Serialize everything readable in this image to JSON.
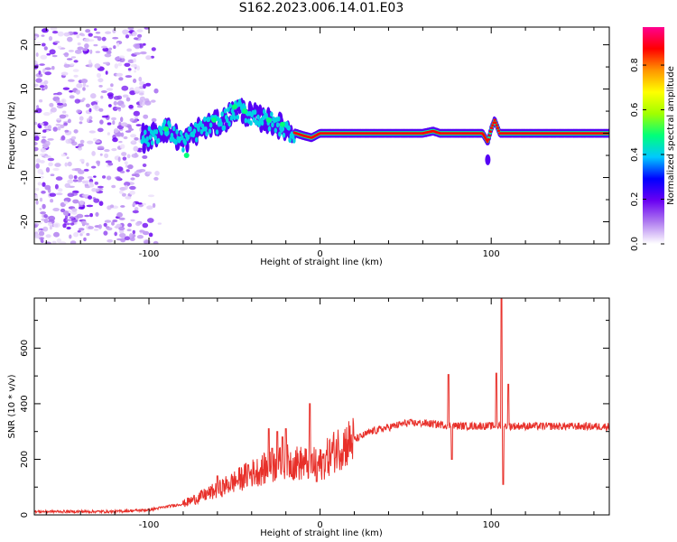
{
  "title": "S162.2023.006.14.01.E03",
  "chart_data": [
    {
      "type": "heatmap",
      "xlabel": "Height of straight line (km)",
      "ylabel": "Frequency (Hz)",
      "xlim": [
        -167,
        169
      ],
      "ylim": [
        -25,
        24
      ],
      "xticks": [
        -100,
        0,
        100
      ],
      "yticks": [
        -20,
        -10,
        0,
        10,
        20
      ],
      "colorbar": {
        "label": "Normalized spectral amplitude",
        "ticks": [
          0.0,
          0.2,
          0.4,
          0.6,
          0.8
        ],
        "range": [
          0,
          0.97
        ],
        "colors": [
          "#ffffff",
          "#b07df0",
          "#6a00f2",
          "#0000ff",
          "#00c8ff",
          "#00ff7a",
          "#a0ff00",
          "#ffff00",
          "#ff9600",
          "#ff0000",
          "#ff0090"
        ]
      },
      "features": [
        {
          "name": "noise",
          "x_range": [
            -167,
            -93
          ],
          "y_range": [
            -25,
            24
          ]
        },
        {
          "name": "ridge",
          "points": [
            [
              -103,
              -1.5
            ],
            [
              -90,
              1
            ],
            [
              -80,
              -2
            ],
            [
              -70,
              1
            ],
            [
              -58,
              2.5
            ],
            [
              -48,
              5.5
            ],
            [
              -40,
              4
            ],
            [
              -32,
              3
            ],
            [
              -25,
              2
            ],
            [
              -18,
              0.5
            ],
            [
              -10,
              -0.5
            ],
            [
              -5,
              -1
            ],
            [
              0,
              0
            ],
            [
              20,
              0
            ],
            [
              60,
              0
            ],
            [
              66,
              0.5
            ],
            [
              70,
              0
            ],
            [
              95,
              0
            ],
            [
              98,
              -2
            ],
            [
              100,
              1
            ],
            [
              102,
              3
            ],
            [
              105,
              0
            ],
            [
              169,
              0
            ]
          ]
        }
      ]
    },
    {
      "type": "line",
      "xlabel": "Height of straight line (km)",
      "ylabel": "SNR (10 * v/v)",
      "xlim": [
        -167,
        169
      ],
      "ylim": [
        0,
        780
      ],
      "xticks": [
        -100,
        0,
        100
      ],
      "yticks": [
        0,
        200,
        400,
        600
      ],
      "line_color": "#e8302a",
      "baseline": [
        [
          -167,
          12
        ],
        [
          -120,
          12
        ],
        [
          -100,
          18
        ],
        [
          -80,
          40
        ],
        [
          -60,
          90
        ],
        [
          -40,
          150
        ],
        [
          -20,
          190
        ],
        [
          0,
          180
        ],
        [
          10,
          240
        ],
        [
          20,
          270
        ],
        [
          30,
          300
        ],
        [
          50,
          330
        ],
        [
          60,
          330
        ],
        [
          70,
          325
        ],
        [
          80,
          320
        ],
        [
          100,
          320
        ],
        [
          169,
          318
        ]
      ],
      "spikes": [
        [
          -60,
          140
        ],
        [
          -42,
          180
        ],
        [
          -30,
          310
        ],
        [
          -28,
          240
        ],
        [
          -25,
          300
        ],
        [
          -22,
          280
        ],
        [
          -20,
          310
        ],
        [
          -6,
          400
        ],
        [
          -2,
          120
        ],
        [
          75,
          505
        ],
        [
          77,
          200
        ],
        [
          103,
          510
        ],
        [
          106,
          780
        ],
        [
          107,
          110
        ],
        [
          110,
          470
        ]
      ]
    }
  ]
}
